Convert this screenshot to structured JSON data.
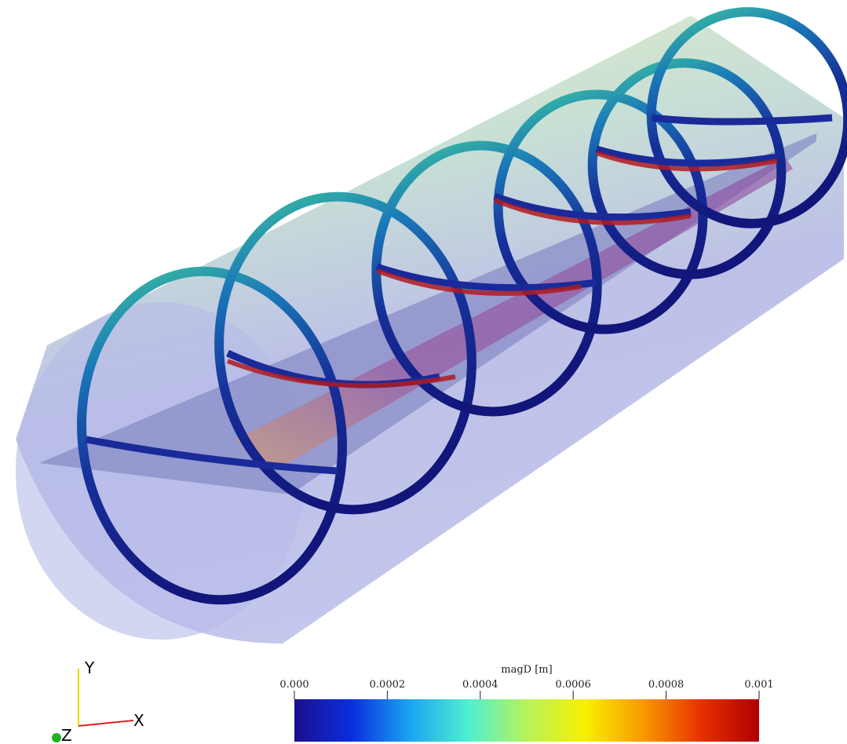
{
  "colorbar": {
    "title": "magD [m]",
    "range": [
      0,
      0.001
    ],
    "ticks": [
      {
        "value": 0,
        "label": "0.000"
      },
      0.0002,
      0.0004,
      0.0006,
      0.0008,
      0.001
    ],
    "colors": [
      "#1b0f8e",
      "#0a2fe0",
      "#1aa6f0",
      "#4ff0d0",
      "#b8f25a",
      "#f8f000",
      "#f89a00",
      "#e83000",
      "#b00000"
    ]
  },
  "axes_triad": {
    "y": "Y",
    "x": "X",
    "z": "Z"
  }
}
